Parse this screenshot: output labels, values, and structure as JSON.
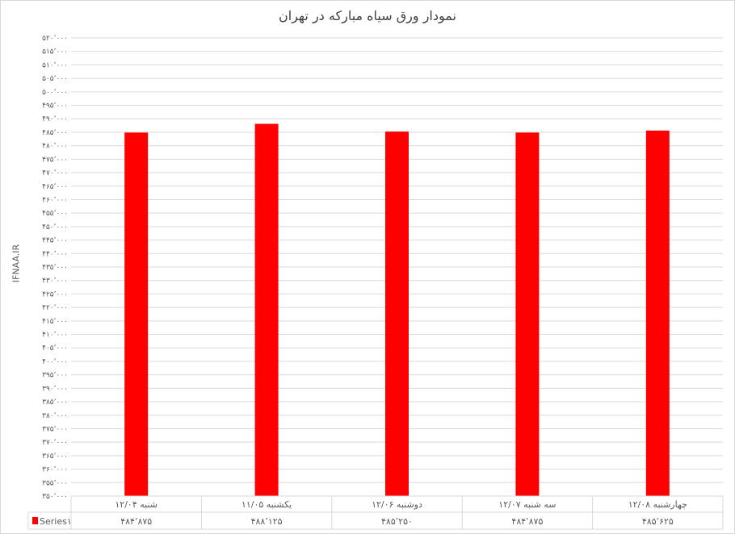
{
  "chart_data": {
    "type": "bar",
    "title": "نمودار ورق سیاه مبارکه در تهران",
    "ylabel": "IFNAA.IR",
    "xlabel": "",
    "ylim": [
      350000,
      520000
    ],
    "ytick_step": 5000,
    "grid": true,
    "legend": "data-table-left",
    "categories": [
      "شنبه ۱۲/۰۴",
      "یکشنبه ۱۱/۰۵",
      "دوشنبه ۱۲/۰۶",
      "سه شنبه ۱۲/۰۷",
      "چهارشنبه ۱۲/۰۸"
    ],
    "series": [
      {
        "name": "Series۱",
        "color": "#ff0000",
        "values": [
          484875,
          488125,
          485250,
          484875,
          485625
        ]
      }
    ],
    "data_labels": [
      "۴۸۴٬۸۷۵",
      "۴۸۸٬۱۲۵",
      "۴۸۵٬۲۵۰",
      "۴۸۴٬۸۷۵",
      "۴۸۵٬۶۲۵"
    ],
    "ytick_labels": [
      "۳۵۰٬۰۰۰",
      "۳۵۵٬۰۰۰",
      "۳۶۰٬۰۰۰",
      "۳۶۵٬۰۰۰",
      "۳۷۰٬۰۰۰",
      "۳۷۵٬۰۰۰",
      "۳۸۰٬۰۰۰",
      "۳۸۵٬۰۰۰",
      "۳۹۰٬۰۰۰",
      "۳۹۵٬۰۰۰",
      "۴۰۰٬۰۰۰",
      "۴۰۵٬۰۰۰",
      "۴۱۰٬۰۰۰",
      "۴۱۵٬۰۰۰",
      "۴۲۰٬۰۰۰",
      "۴۲۵٬۰۰۰",
      "۴۳۰٬۰۰۰",
      "۴۳۵٬۰۰۰",
      "۴۴۰٬۰۰۰",
      "۴۴۵٬۰۰۰",
      "۴۵۰٬۰۰۰",
      "۴۵۵٬۰۰۰",
      "۴۶۰٬۰۰۰",
      "۴۶۵٬۰۰۰",
      "۴۷۰٬۰۰۰",
      "۴۷۵٬۰۰۰",
      "۴۸۰٬۰۰۰",
      "۴۸۵٬۰۰۰",
      "۴۹۰٬۰۰۰",
      "۴۹۵٬۰۰۰",
      "۵۰۰٬۰۰۰",
      "۵۰۵٬۰۰۰",
      "۵۱۰٬۰۰۰",
      "۵۱۵٬۰۰۰",
      "۵۲۰٬۰۰۰"
    ],
    "colors": {
      "bar": "#ff0000",
      "grid": "#d9d9d9",
      "text": "#595959"
    }
  }
}
